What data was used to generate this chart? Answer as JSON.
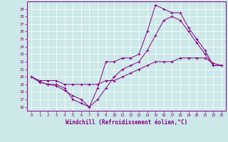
{
  "xlabel": "Windchill (Refroidissement éolien,°C)",
  "bg_color": "#cce8e8",
  "line_color": "#880088",
  "grid_color": "#ffffff",
  "xlim": [
    -0.5,
    23.5
  ],
  "ylim": [
    15.5,
    30.0
  ],
  "xticks": [
    0,
    1,
    2,
    3,
    4,
    5,
    6,
    7,
    8,
    9,
    10,
    11,
    12,
    13,
    14,
    15,
    16,
    17,
    18,
    19,
    20,
    21,
    22,
    23
  ],
  "yticks": [
    16,
    17,
    18,
    19,
    20,
    21,
    22,
    23,
    24,
    25,
    26,
    27,
    28,
    29
  ],
  "line1_x": [
    0,
    1,
    2,
    3,
    4,
    5,
    6,
    7,
    8,
    9,
    10,
    11,
    12,
    13,
    14,
    15,
    16,
    17,
    18,
    19,
    20,
    21,
    22,
    23
  ],
  "line1_y": [
    20.0,
    19.3,
    19.0,
    19.0,
    18.5,
    17.0,
    16.5,
    16.0,
    18.5,
    22.0,
    22.0,
    22.5,
    22.5,
    23.0,
    26.0,
    29.5,
    29.0,
    28.5,
    28.5,
    26.5,
    25.0,
    23.5,
    21.5,
    21.5
  ],
  "line2_x": [
    0,
    1,
    2,
    3,
    4,
    5,
    6,
    7,
    8,
    9,
    10,
    11,
    12,
    13,
    14,
    15,
    16,
    17,
    18,
    19,
    20,
    21,
    22,
    23
  ],
  "line2_y": [
    20.0,
    19.3,
    19.0,
    18.8,
    18.2,
    17.5,
    17.0,
    16.0,
    17.0,
    18.5,
    20.0,
    21.0,
    21.5,
    22.0,
    23.5,
    25.5,
    27.5,
    28.0,
    27.5,
    26.0,
    24.5,
    23.0,
    21.5,
    21.5
  ],
  "line3_x": [
    0,
    1,
    2,
    3,
    4,
    5,
    6,
    7,
    8,
    9,
    10,
    11,
    12,
    13,
    14,
    15,
    16,
    17,
    18,
    19,
    20,
    21,
    22,
    23
  ],
  "line3_y": [
    20.0,
    19.5,
    19.5,
    19.5,
    19.0,
    19.0,
    19.0,
    19.0,
    19.0,
    19.5,
    19.5,
    20.0,
    20.5,
    21.0,
    21.5,
    22.0,
    22.0,
    22.0,
    22.5,
    22.5,
    22.5,
    22.5,
    21.8,
    21.5
  ]
}
